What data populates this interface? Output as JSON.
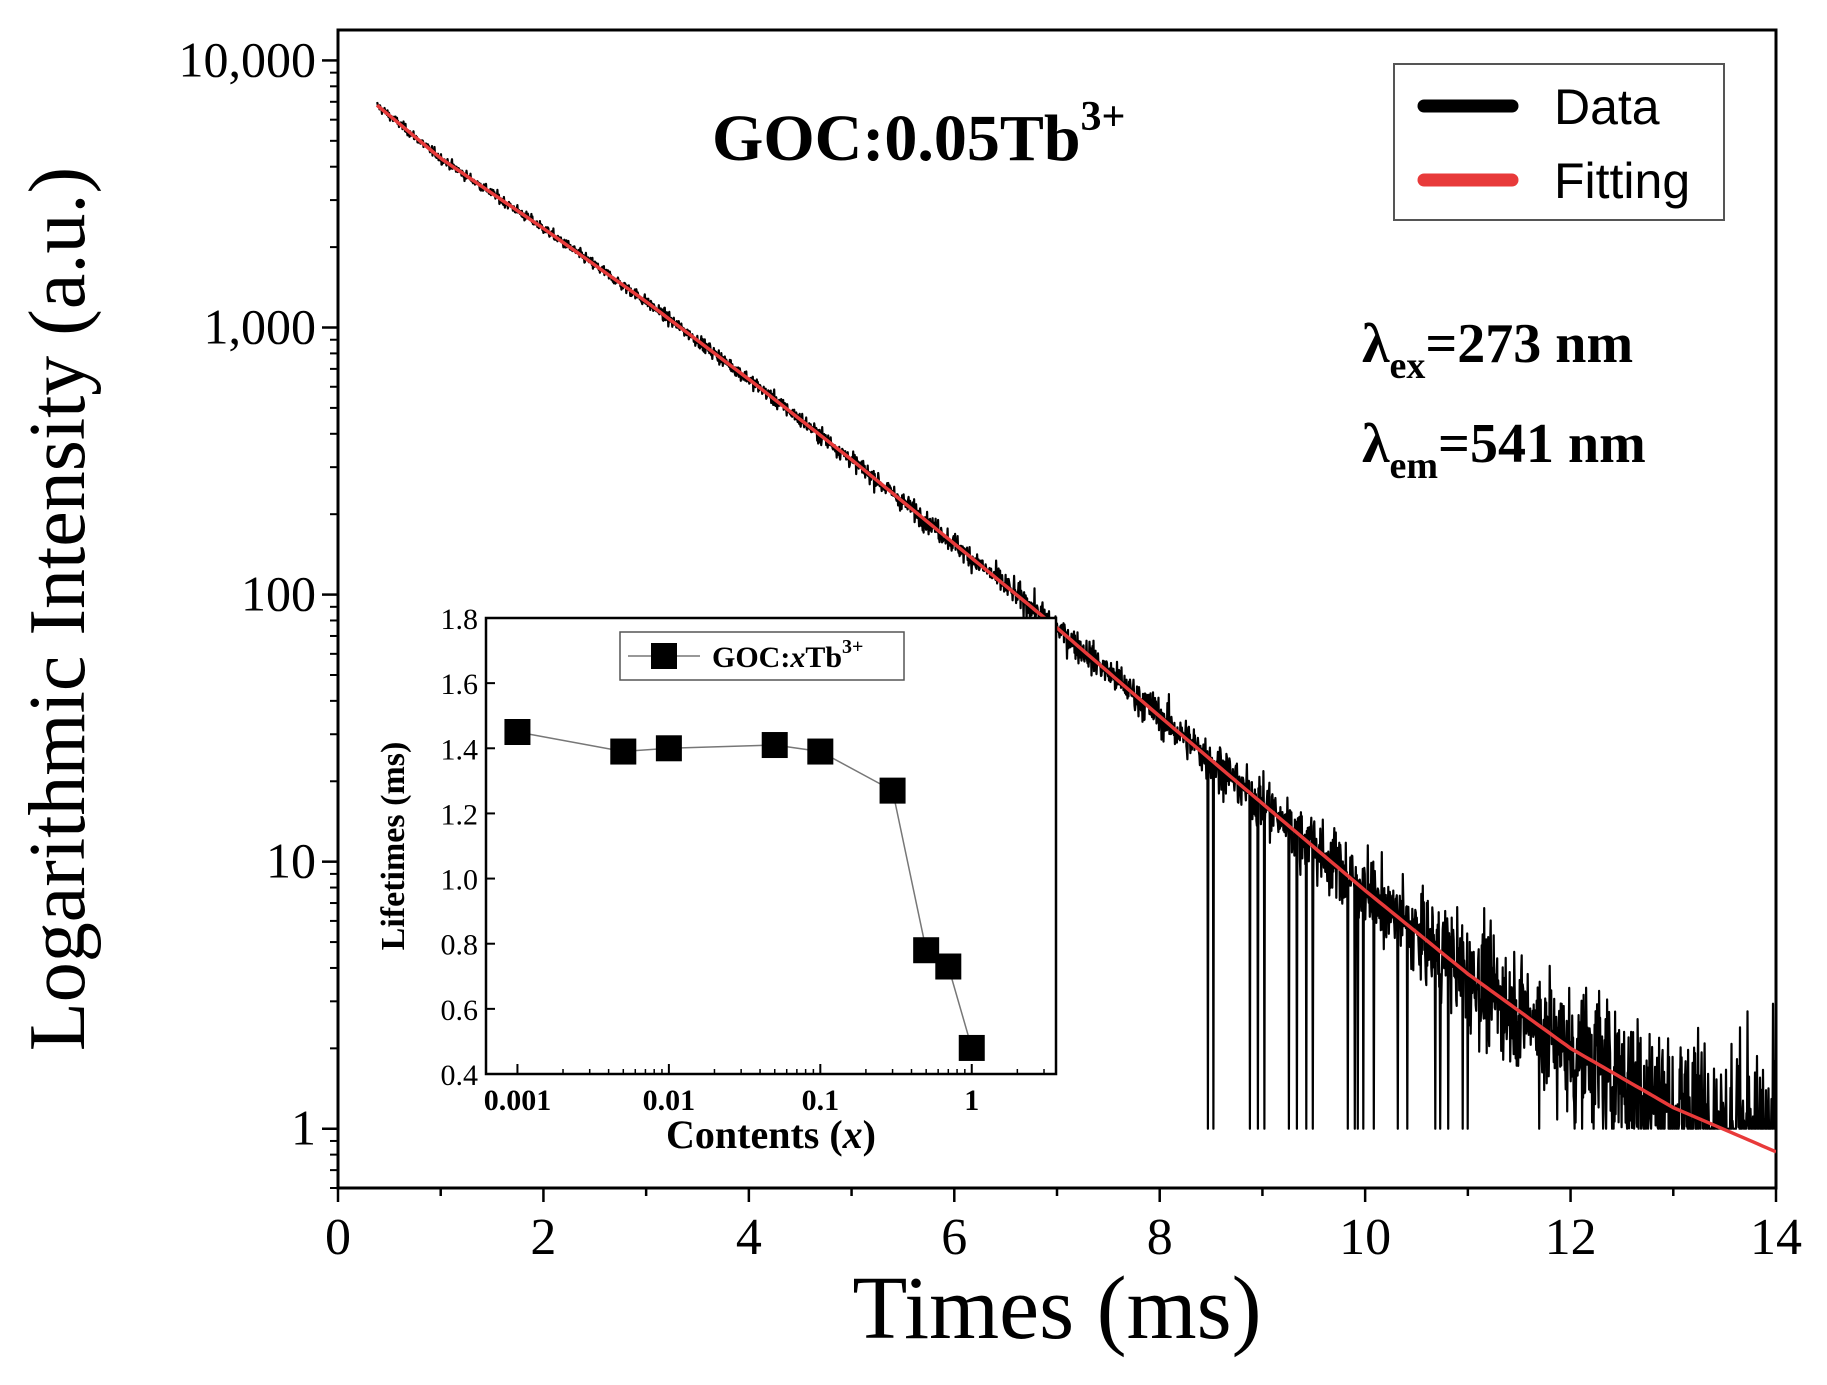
{
  "chart_data": [
    {
      "type": "line",
      "title": "",
      "xlabel": "Times (ms)",
      "ylabel": "Logarithmic Intensity (a.u.)",
      "xlim": [
        0,
        14
      ],
      "ylim": [
        0.6,
        13000
      ],
      "yscale": "log",
      "xticks": [
        "0",
        "2",
        "4",
        "6",
        "8",
        "10",
        "12",
        "14"
      ],
      "yticks": [
        {
          "value": 1,
          "label": "1"
        },
        {
          "value": 10,
          "label": "10"
        },
        {
          "value": 100,
          "label": "100"
        },
        {
          "value": 1000,
          "label": "1,000"
        },
        {
          "value": 10000,
          "label": "10,000"
        }
      ],
      "legend": {
        "position": "top-right",
        "entries": [
          {
            "label": "Data",
            "color": "#000000"
          },
          {
            "label": "Fitting",
            "color": "#e83a3a"
          }
        ]
      },
      "annotations": {
        "sample_main": "GOC:0.05Tb",
        "sample_sup": "3+",
        "ex_prefix": "λ",
        "ex_sub": "ex",
        "ex_value": "=273 nm",
        "em_prefix": "λ",
        "em_sub": "em",
        "em_value": "=541 nm"
      },
      "series": [
        {
          "name": "Data",
          "color": "#000000",
          "x_start": 0.38,
          "x_end": 14.0,
          "noisy": true,
          "note_floor": 1
        },
        {
          "name": "Fitting",
          "color": "#e83a3a",
          "x": [
            0.38,
            1,
            2,
            3,
            4,
            5,
            6,
            7,
            8,
            9,
            10,
            11,
            12,
            13,
            14
          ],
          "y": [
            6800,
            4300,
            2350,
            1250,
            640,
            320,
            155,
            75,
            35,
            16.5,
            7.8,
            3.8,
            2.0,
            1.2,
            0.82
          ]
        }
      ]
    },
    {
      "type": "line",
      "title": "",
      "xlabel_main": "Contents (",
      "xlabel_var": "x",
      "xlabel_end": ")",
      "ylabel": "Lifetimes (ms)",
      "xscale": "log",
      "xlim": [
        0.00062,
        3.6
      ],
      "ylim": [
        0.4,
        1.8
      ],
      "xticks": [
        {
          "value": 0.001,
          "label": "0.001"
        },
        {
          "value": 0.01,
          "label": "0.01"
        },
        {
          "value": 0.1,
          "label": "0.1"
        },
        {
          "value": 1,
          "label": "1"
        }
      ],
      "yticks": [
        "0.4",
        "0.6",
        "0.8",
        "1.0",
        "1.2",
        "1.4",
        "1.6",
        "1.8"
      ],
      "legend": {
        "position": "top-left",
        "label_pre": "GOC:",
        "label_var": "x",
        "label_post": "Tb",
        "label_sup": "3+"
      },
      "series": [
        {
          "name": "GOC:xTb3+",
          "color": "#000000",
          "marker": "square",
          "x": [
            0.001,
            0.005,
            0.01,
            0.05,
            0.1,
            0.3,
            0.5,
            0.7,
            1.0
          ],
          "y": [
            1.45,
            1.39,
            1.4,
            1.41,
            1.39,
            1.27,
            0.78,
            0.73,
            0.48
          ]
        }
      ]
    }
  ]
}
